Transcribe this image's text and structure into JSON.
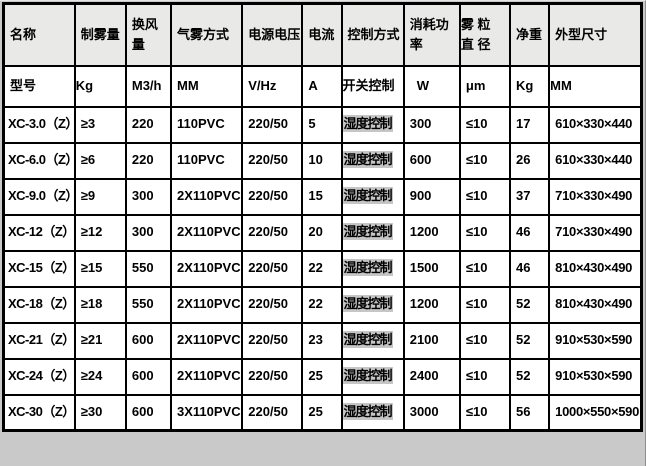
{
  "table": {
    "title": "XC series atomizer specification table",
    "header": {
      "name": "名称",
      "fog_output": "制雾量",
      "air_exchange": "换风量",
      "aerosol_method": "气雾方式",
      "power_voltage": "电源电压",
      "current": "电流",
      "control_method": "控制方式",
      "power_consumption": "消耗功\n率",
      "fog_particle_diameter": "雾 粒\n直 径",
      "net_weight": "净重",
      "dimensions": "外型尺寸"
    },
    "units": {
      "model": "型号",
      "fog_output": "Kg",
      "air_exchange": "M3/h",
      "aerosol_method": "MM",
      "power_voltage": "V/Hz",
      "current": "A",
      "control_method": "开关控制",
      "power_consumption": "W",
      "fog_particle_diameter": "μm",
      "net_weight": "Kg",
      "dimensions": "MM"
    },
    "rows": [
      [
        "XC-3.0（Z）",
        "≥3",
        "220",
        "110PVC",
        "220/50",
        "5",
        "湿度控制",
        "300",
        "≤10",
        "17",
        "610×330×440"
      ],
      [
        "XC-6.0（Z）",
        "≥6",
        "220",
        "110PVC",
        "220/50",
        "10",
        "湿度控制",
        "600",
        "≤10",
        "26",
        "610×330×440"
      ],
      [
        "XC-9.0（Z）",
        "≥9",
        "300",
        "2X110PVC",
        "220/50",
        "15",
        "湿度控制",
        "900",
        "≤10",
        "37",
        "710×330×490"
      ],
      [
        "XC-12（Z）",
        "≥12",
        "300",
        "2X110PVC",
        "220/50",
        "20",
        "湿度控制",
        "1200",
        "≤10",
        "46",
        "710×330×490"
      ],
      [
        "XC-15（Z）",
        "≥15",
        "550",
        "2X110PVC",
        "220/50",
        "22",
        "湿度控制",
        "1500",
        "≤10",
        "46",
        "810×430×490"
      ],
      [
        "XC-18（Z）",
        "≥18",
        "550",
        "2X110PVC",
        "220/50",
        "22",
        "湿度控制",
        "1200",
        "≤10",
        "52",
        "810×430×490"
      ],
      [
        "XC-21（Z）",
        "≥21",
        "600",
        "2X110PVC",
        "220/50",
        "23",
        "湿度控制",
        "2100",
        "≤10",
        "52",
        "910×530×590"
      ],
      [
        "XC-24（Z）",
        "≥24",
        "600",
        "2X110PVC",
        "220/50",
        "25",
        "湿度控制",
        "2400",
        "≤10",
        "52",
        "910×530×590"
      ],
      [
        "XC-30（Z）",
        "≥30",
        "600",
        "3X110PVC",
        "220/50",
        "25",
        "湿度控制",
        "3000",
        "≤10",
        "56",
        "1000×550×590"
      ]
    ],
    "colors": {
      "header_background": "#e9e9e7",
      "cell_background": "#ffffff",
      "border": "#000000",
      "highlight_background": "#c6c6c6",
      "page_background": "#c9c9c9"
    }
  }
}
